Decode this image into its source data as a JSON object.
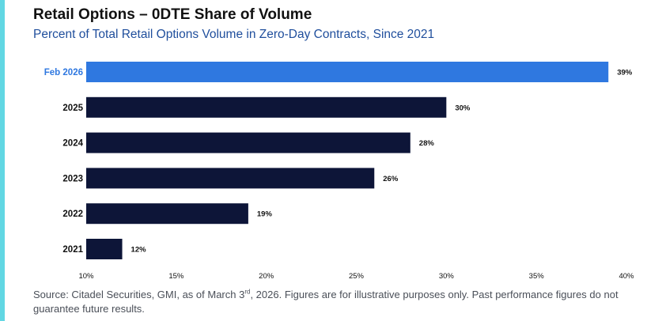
{
  "title": "Retail Options – 0DTE Share of Volume",
  "subtitle": "Percent of Total Retail Options Volume in Zero-Day Contracts, Since 2021",
  "footnote": {
    "before": "Source: Citadel Securities, GMI, as of March 3",
    "superscript": "rd",
    "after": ", 2026. Figures are for illustrative purposes only. Past performance figures do not guarantee future results."
  },
  "colors": {
    "accent": "#62d7e3",
    "highlight_bar": "#2f78e0",
    "highlight_label": "#2f78e0",
    "bar": "#0d1538",
    "label": "#111111"
  },
  "chart_data": {
    "type": "bar",
    "orientation": "horizontal",
    "categories": [
      "Feb 2026",
      "2025",
      "2024",
      "2023",
      "2022",
      "2021"
    ],
    "values": [
      39,
      30,
      28,
      26,
      19,
      12
    ],
    "data_labels": [
      "39%",
      "30%",
      "28%",
      "26%",
      "19%",
      "12%"
    ],
    "highlighted_category": "Feb 2026",
    "xlim": [
      10,
      40
    ],
    "xticks": [
      10,
      15,
      20,
      25,
      30,
      35,
      40
    ],
    "xtick_labels": [
      "10%",
      "15%",
      "20%",
      "25%",
      "30%",
      "35%",
      "40%"
    ],
    "grid": false,
    "legend": "none"
  }
}
